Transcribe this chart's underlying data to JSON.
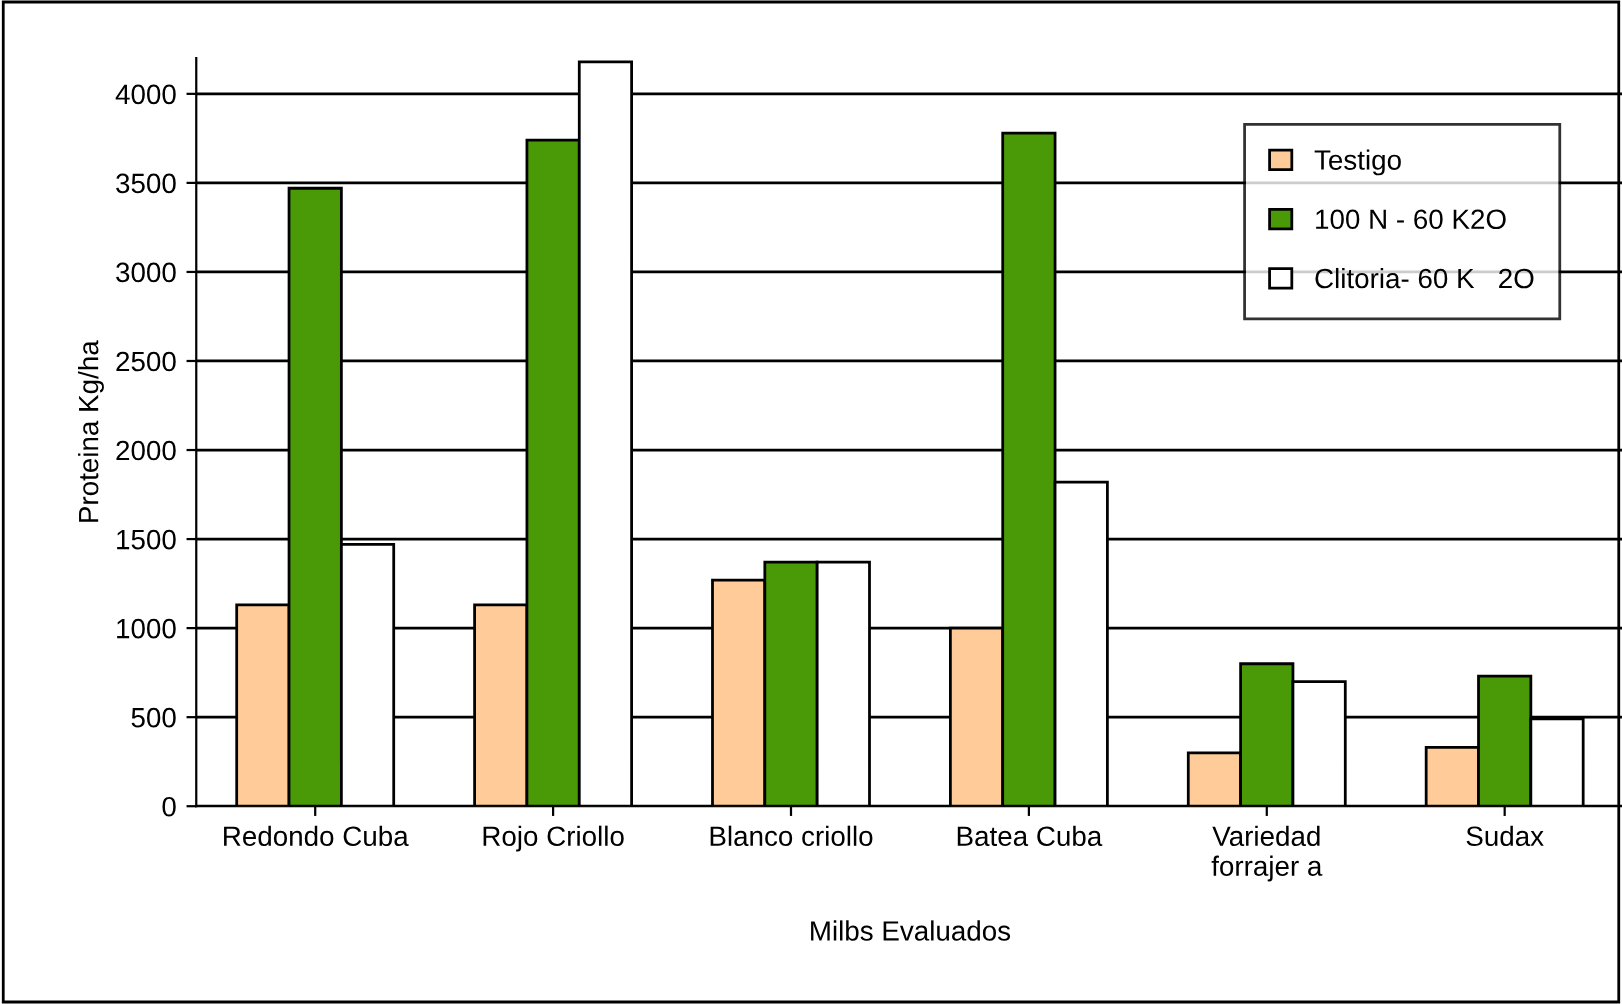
{
  "chart_data": {
    "type": "bar",
    "xlabel": "Milbs Evaluados",
    "ylabel": "Proteina Kg/ha",
    "categories": [
      "Redondo Cuba",
      "Rojo Criollo",
      "Blanco criollo",
      "Batea Cuba",
      "Variedad\nforrajer a",
      "Sudax"
    ],
    "series": [
      {
        "name": "Testigo",
        "color": "#ffcc99",
        "values": [
          1130,
          1130,
          1270,
          1000,
          300,
          330
        ]
      },
      {
        "name": "100 N - 60 K2O",
        "color": "#4a9a08",
        "values": [
          3470,
          3740,
          1370,
          3780,
          800,
          730
        ]
      },
      {
        "name": "Clitoria- 60 K   2O",
        "color": "#ffffff",
        "values": [
          1470,
          4180,
          1370,
          1820,
          700,
          490
        ]
      }
    ],
    "ylim": [
      0,
      4200
    ],
    "yticks": [
      0,
      500,
      1000,
      1500,
      2000,
      2500,
      3000,
      3500,
      4000
    ],
    "grid": "y",
    "legend": "top right"
  }
}
